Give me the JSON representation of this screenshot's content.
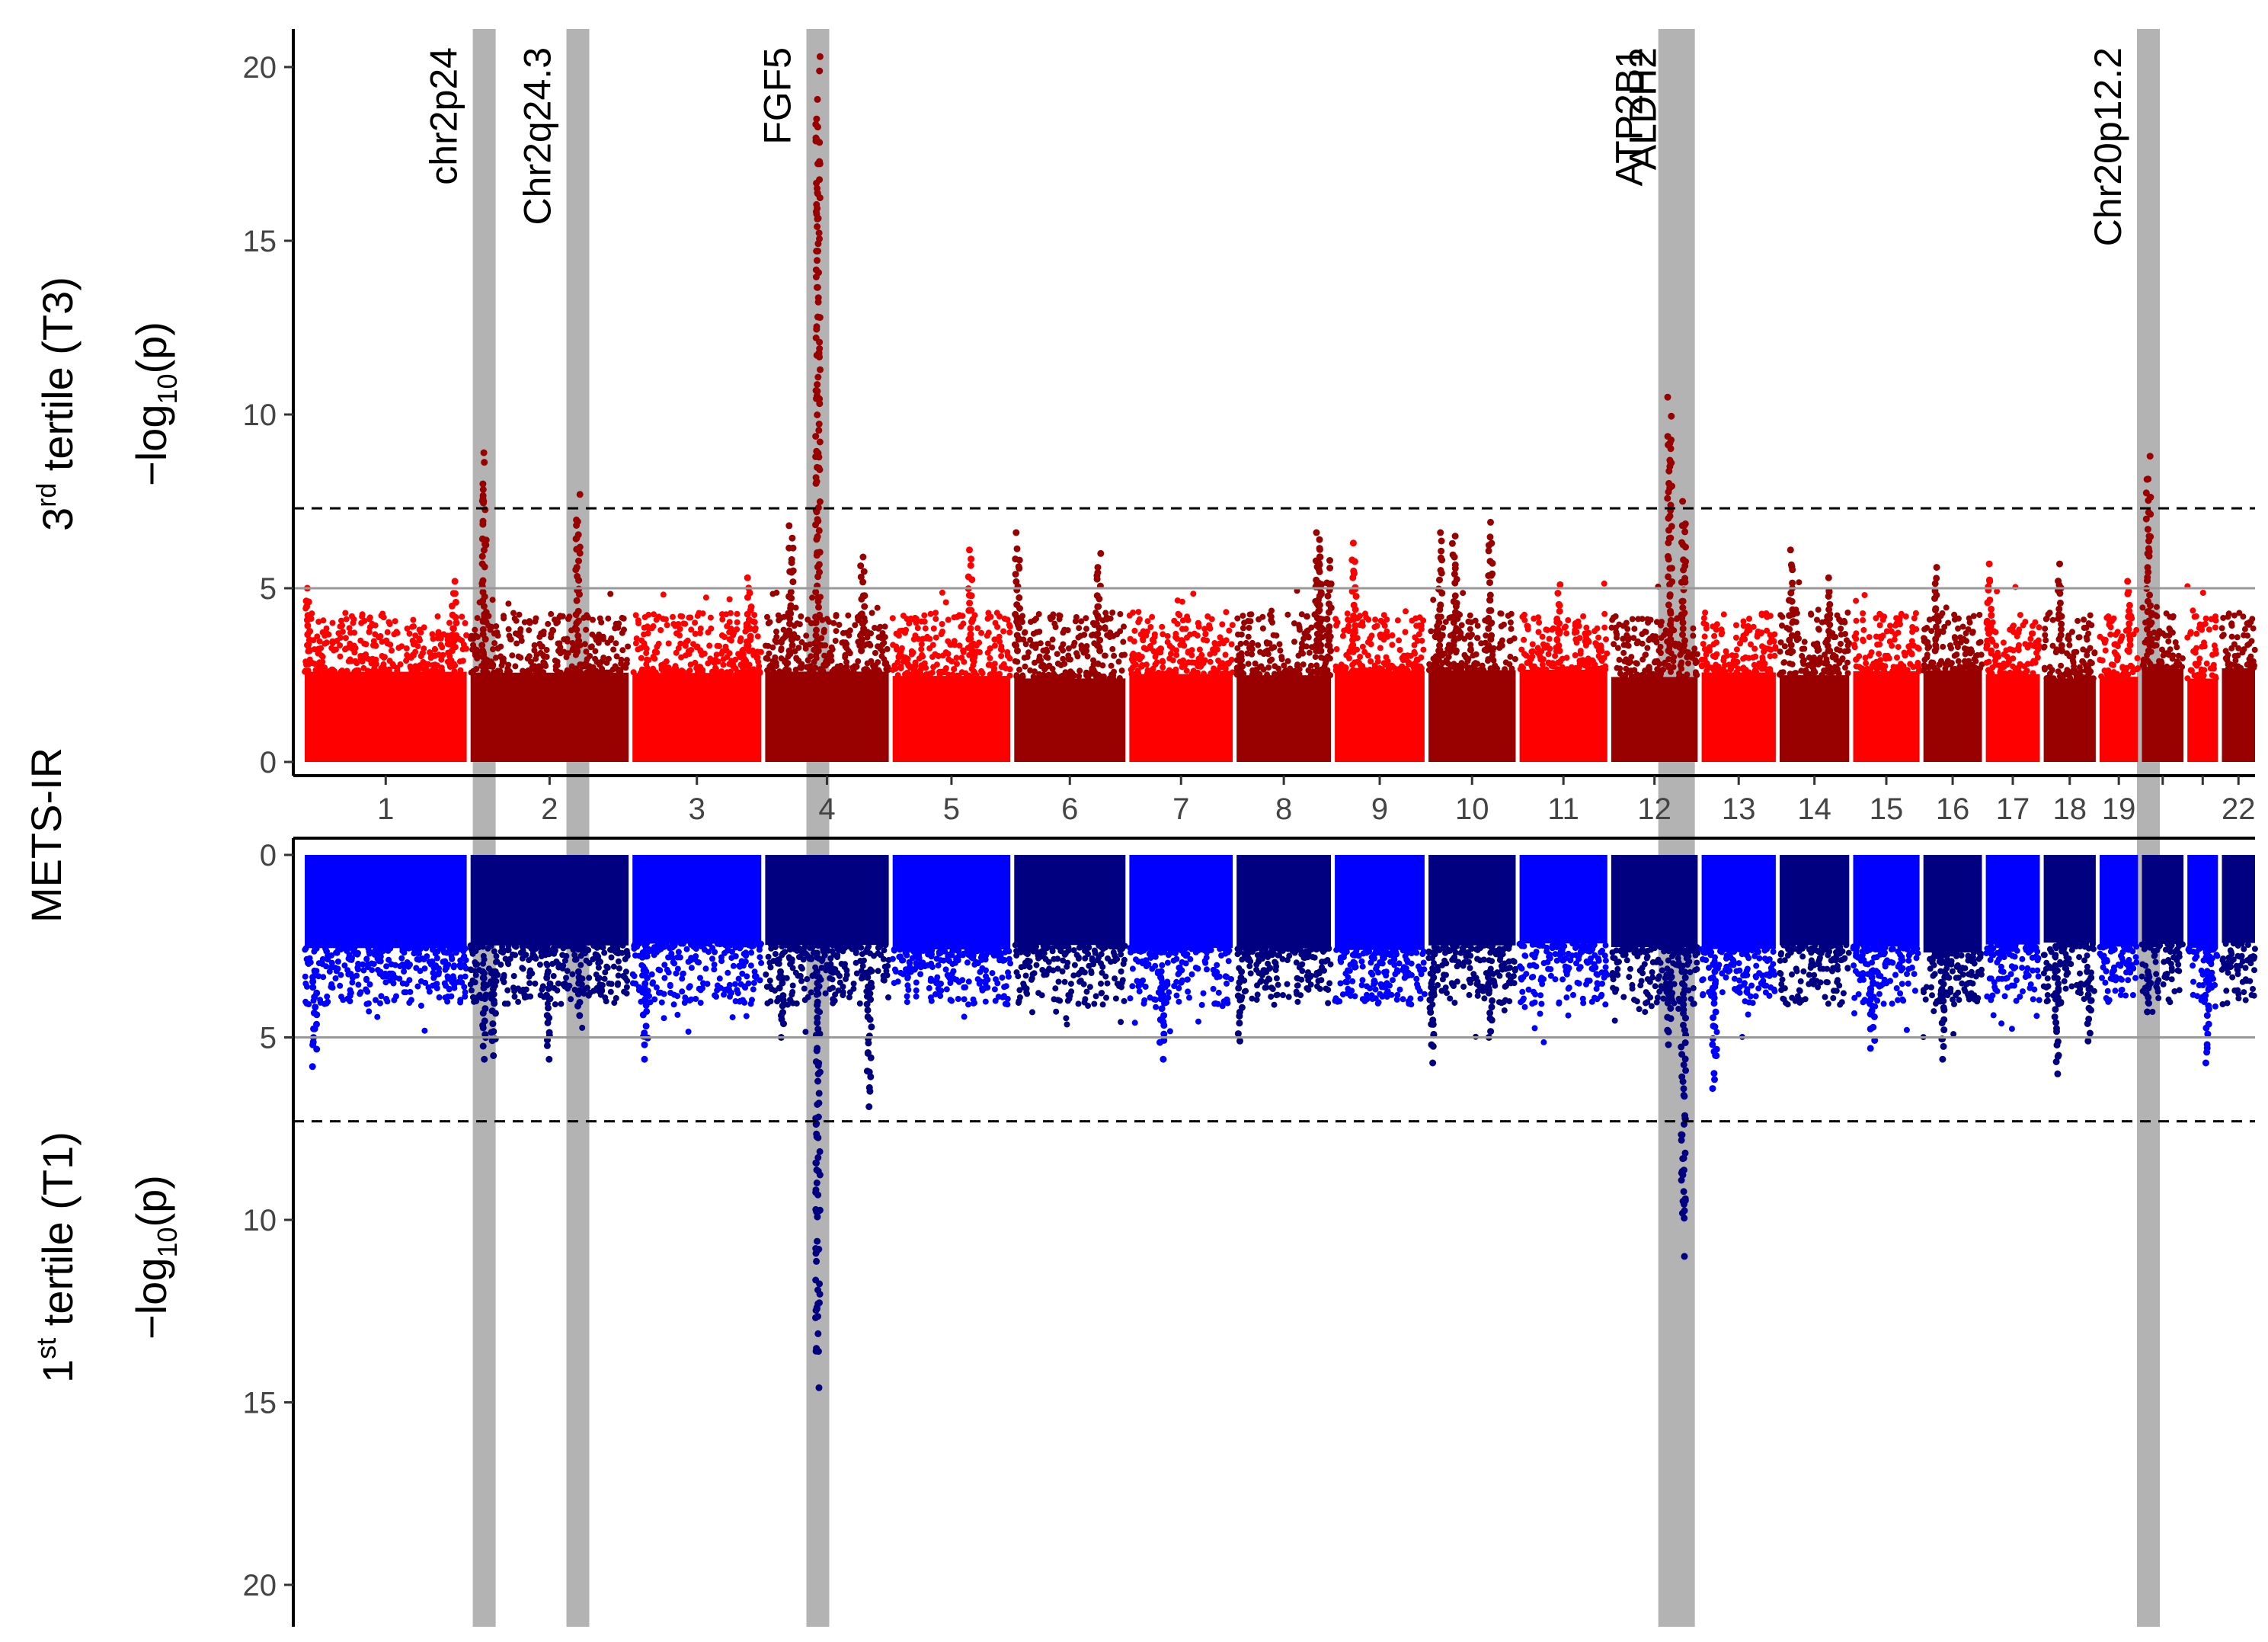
{
  "chart_data": {
    "type": "scatter",
    "subtype": "miami-plot",
    "trait_label": "METS-IR",
    "colors": {
      "top_light": "#ff0000",
      "top_dark": "#990000",
      "bottom_light": "#0000ff",
      "bottom_dark": "#000080",
      "highlight_band": "#b3b3b3",
      "axis": "#000000",
      "suggestive_line": "#999999"
    },
    "chromosomes": [
      "1",
      "2",
      "3",
      "4",
      "5",
      "6",
      "7",
      "8",
      "9",
      "10",
      "11",
      "12",
      "13",
      "14",
      "15",
      "16",
      "17",
      "18",
      "19",
      "20",
      "21",
      "22"
    ],
    "chromosome_tick_labels": [
      "1",
      "2",
      "3",
      "4",
      "5",
      "6",
      "7",
      "8",
      "9",
      "10",
      "11",
      "12",
      "13",
      "14",
      "15",
      "16",
      "17",
      "18",
      "19",
      "",
      "",
      "22"
    ],
    "chromosome_lengths_mb": [
      249,
      243,
      198,
      190,
      181,
      171,
      159,
      145,
      138,
      134,
      135,
      133,
      114,
      107,
      102,
      90,
      83,
      80,
      59,
      64,
      47,
      51
    ],
    "thresholds": {
      "genome_wide": 7.3,
      "suggestive": 5
    },
    "panels": [
      {
        "name": "top",
        "group": "3rd tertile (T3)",
        "ylabel_prefix": "3",
        "ylabel_sup": "rd",
        "ylabel_suffix": " tertile (T3)",
        "yaxis_base": "−log",
        "yaxis_sub": "10",
        "yaxis_tail": "(p)",
        "ylim": [
          0,
          20
        ],
        "yticks": [
          "0",
          "5",
          "10",
          "15",
          "20"
        ],
        "direction": "up",
        "baseline": {
          "min": 3.1,
          "max": 4.3
        }
      },
      {
        "name": "bottom",
        "group": "1st tertile (T1)",
        "ylabel_prefix": "1",
        "ylabel_sup": "st",
        "ylabel_suffix": " tertile (T1)",
        "yaxis_base": "−log",
        "yaxis_sub": "10",
        "yaxis_tail": "(p)",
        "ylim": [
          0,
          20
        ],
        "yticks": [
          "0",
          "5",
          "10",
          "15",
          "20"
        ],
        "direction": "down",
        "baseline": {
          "min": 2.7,
          "max": 4.1
        }
      }
    ],
    "loci": [
      {
        "label": "chr2p24",
        "chrom": 2,
        "pos_mb": 21,
        "top_peak": 8.9,
        "bottom_peak": 5.6
      },
      {
        "label": "Chr2q24.3",
        "chrom": 2,
        "pos_mb": 165,
        "top_peak": 7.7,
        "bottom_peak": 4.4
      },
      {
        "label": "FGF5",
        "chrom": 4,
        "pos_mb": 81,
        "top_peak": 20.3,
        "bottom_peak": 14.6
      },
      {
        "label": "ATP2B1",
        "chrom": 12,
        "pos_mb": 90,
        "top_peak": 10.5,
        "bottom_peak": 5.2
      },
      {
        "label": "ALDH2",
        "chrom": 12,
        "pos_mb": 111,
        "top_peak": 7.5,
        "bottom_peak": 11.0
      },
      {
        "label": "Chr20p12.2",
        "chrom": 20,
        "pos_mb": 10,
        "top_peak": 8.8,
        "bottom_peak": 4.3
      }
    ],
    "secondary_peaks_top": [
      {
        "chrom": 1,
        "pos_mb": 5,
        "value": 5.0
      },
      {
        "chrom": 1,
        "pos_mb": 230,
        "value": 5.2
      },
      {
        "chrom": 3,
        "pos_mb": 180,
        "value": 5.3
      },
      {
        "chrom": 4,
        "pos_mb": 40,
        "value": 6.8
      },
      {
        "chrom": 4,
        "pos_mb": 150,
        "value": 5.9
      },
      {
        "chrom": 5,
        "pos_mb": 120,
        "value": 6.1
      },
      {
        "chrom": 6,
        "pos_mb": 5,
        "value": 6.6
      },
      {
        "chrom": 6,
        "pos_mb": 130,
        "value": 6.0
      },
      {
        "chrom": 8,
        "pos_mb": 125,
        "value": 6.6
      },
      {
        "chrom": 8,
        "pos_mb": 128,
        "value": 6.4
      },
      {
        "chrom": 8,
        "pos_mb": 142,
        "value": 5.8
      },
      {
        "chrom": 9,
        "pos_mb": 30,
        "value": 6.3
      },
      {
        "chrom": 10,
        "pos_mb": 18,
        "value": 6.6
      },
      {
        "chrom": 10,
        "pos_mb": 40,
        "value": 6.5
      },
      {
        "chrom": 10,
        "pos_mb": 95,
        "value": 6.9
      },
      {
        "chrom": 11,
        "pos_mb": 60,
        "value": 5.1
      },
      {
        "chrom": 14,
        "pos_mb": 18,
        "value": 6.1
      },
      {
        "chrom": 14,
        "pos_mb": 75,
        "value": 5.3
      },
      {
        "chrom": 16,
        "pos_mb": 20,
        "value": 5.6
      },
      {
        "chrom": 17,
        "pos_mb": 5,
        "value": 5.7
      },
      {
        "chrom": 18,
        "pos_mb": 25,
        "value": 5.7
      },
      {
        "chrom": 19,
        "pos_mb": 45,
        "value": 5.2
      }
    ],
    "secondary_peaks_bottom": [
      {
        "chrom": 1,
        "pos_mb": 15,
        "value": 5.8
      },
      {
        "chrom": 2,
        "pos_mb": 35,
        "value": 5.5
      },
      {
        "chrom": 2,
        "pos_mb": 120,
        "value": 5.6
      },
      {
        "chrom": 3,
        "pos_mb": 20,
        "value": 5.6
      },
      {
        "chrom": 4,
        "pos_mb": 25,
        "value": 5.0
      },
      {
        "chrom": 4,
        "pos_mb": 160,
        "value": 6.9
      },
      {
        "chrom": 7,
        "pos_mb": 50,
        "value": 5.6
      },
      {
        "chrom": 8,
        "pos_mb": 5,
        "value": 5.1
      },
      {
        "chrom": 10,
        "pos_mb": 5,
        "value": 5.7
      },
      {
        "chrom": 10,
        "pos_mb": 95,
        "value": 5.0
      },
      {
        "chrom": 13,
        "pos_mb": 20,
        "value": 6.4
      },
      {
        "chrom": 15,
        "pos_mb": 30,
        "value": 5.3
      },
      {
        "chrom": 16,
        "pos_mb": 30,
        "value": 5.6
      },
      {
        "chrom": 18,
        "pos_mb": 20,
        "value": 6.0
      },
      {
        "chrom": 18,
        "pos_mb": 70,
        "value": 5.1
      },
      {
        "chrom": 21,
        "pos_mb": 30,
        "value": 5.7
      }
    ]
  }
}
